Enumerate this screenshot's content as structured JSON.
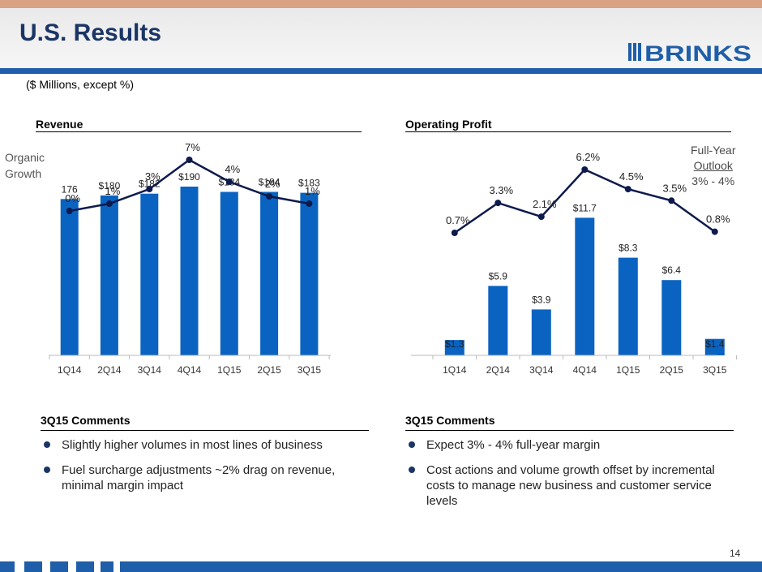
{
  "header": {
    "title": "U.S. Results",
    "subtitle": "($ Millions, except %)",
    "logo_text": "BRINKS"
  },
  "colors": {
    "bar": "#0a63c1",
    "line": "#0d1a4c",
    "brand": "#1f5ea8",
    "title": "#1a3566"
  },
  "revenue": {
    "heading": "Revenue",
    "side_label_line1": "Organic",
    "side_label_line2": "Growth"
  },
  "profit": {
    "heading": "Operating Profit",
    "outlook_line1": "Full-Year",
    "outlook_line2": "Outlook",
    "outlook_line3": "3% - 4%"
  },
  "chart_data": [
    {
      "type": "bar",
      "title": "Revenue",
      "categories": [
        "1Q14",
        "2Q14",
        "3Q14",
        "4Q14",
        "1Q15",
        "2Q15",
        "3Q15"
      ],
      "values": [
        176,
        180,
        182,
        190,
        184,
        184,
        183
      ],
      "bar_labels": [
        "176",
        "$180",
        "$182",
        "$190",
        "$184",
        "$184",
        "$183"
      ],
      "overlay_line": {
        "type": "line",
        "values": [
          0,
          1,
          3,
          7,
          4,
          2,
          1
        ],
        "labels": [
          "0%",
          "1%",
          "3%",
          "7%",
          "4%",
          "2%",
          "1%"
        ]
      },
      "ylim": [
        0,
        200
      ]
    },
    {
      "type": "bar",
      "title": "Operating Profit",
      "categories": [
        "1Q14",
        "2Q14",
        "3Q14",
        "4Q14",
        "1Q15",
        "2Q15",
        "3Q15"
      ],
      "values": [
        1.3,
        5.9,
        3.9,
        11.7,
        8.3,
        6.4,
        1.4
      ],
      "bar_labels": [
        "$1.3",
        "$5.9",
        "$3.9",
        "$11.7",
        "$8.3",
        "$6.4",
        "$1.4"
      ],
      "overlay_line": {
        "type": "line",
        "values": [
          0.7,
          3.3,
          2.1,
          6.2,
          4.5,
          3.5,
          0.8
        ],
        "labels": [
          "0.7%",
          "3.3%",
          "2.1%",
          "6.2%",
          "4.5%",
          "3.5%",
          "0.8%"
        ]
      },
      "ylim": [
        0,
        12
      ]
    }
  ],
  "comments_left": {
    "heading": "3Q15 Comments",
    "items": [
      {
        "text": "Slightly higher volumes in most lines of business"
      },
      {
        "text": "Fuel surcharge adjustments ~2% drag on revenue, minimal margin impact"
      }
    ]
  },
  "comments_right": {
    "heading": "3Q15 Comments",
    "items": [
      {
        "text": "Expect 3% - 4% full-year margin"
      },
      {
        "text": "Cost actions and volume growth offset by incremental costs to manage new business and customer service levels"
      }
    ]
  },
  "page_number": "14"
}
